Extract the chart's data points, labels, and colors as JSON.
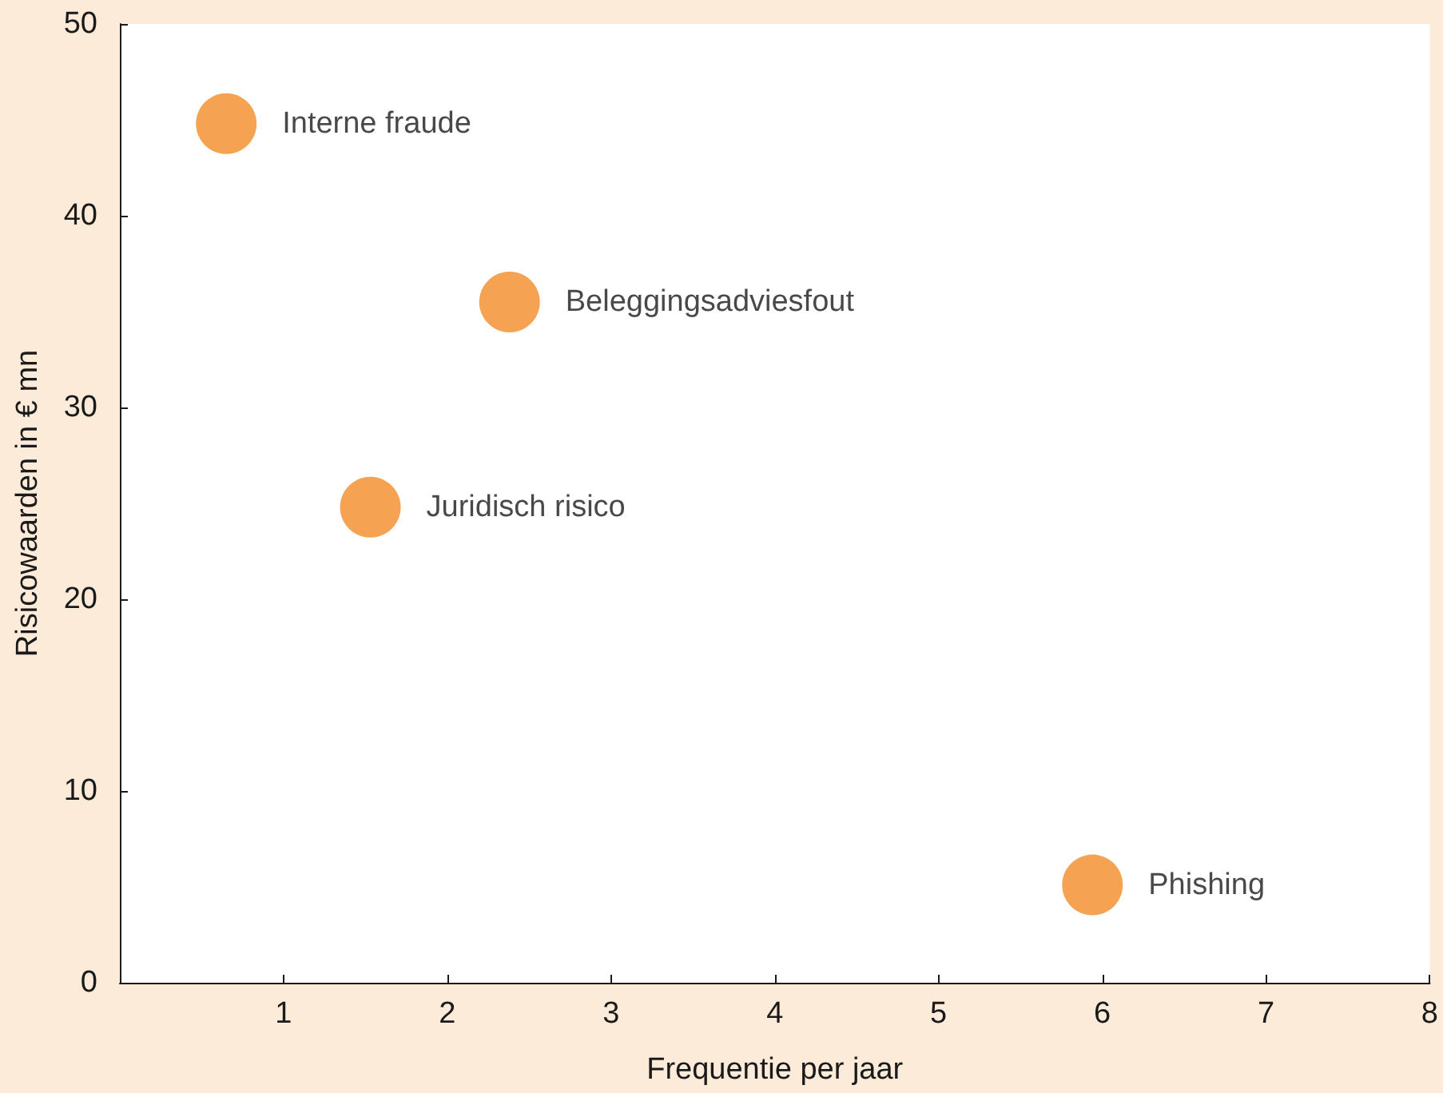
{
  "chart_data": {
    "type": "scatter",
    "xlabel": "Frequentie per jaar",
    "ylabel": "Risicowaarden in € mn",
    "series": [
      {
        "name": "Interne fraude",
        "color": "#f28c28",
        "x": [
          0.65
        ],
        "values": [
          44.8
        ]
      },
      {
        "name": "Beleggingsadviesfout",
        "color": "#f28c28",
        "x": [
          2.38
        ],
        "values": [
          35.5
        ]
      },
      {
        "name": "Juridisch risico",
        "color": "#f28c28",
        "x": [
          1.53
        ],
        "values": [
          24.8
        ]
      },
      {
        "name": "Phishing",
        "color": "#f28c28",
        "x": [
          5.94
        ],
        "values": [
          5.1
        ]
      }
    ],
    "xlim": [
      0,
      8
    ],
    "xticks": [
      1,
      2,
      3,
      4,
      5,
      6,
      7,
      8
    ],
    "ylim": [
      0,
      50
    ],
    "yticks": [
      0,
      10,
      20,
      30,
      40,
      50
    ],
    "grid": false,
    "legend": false,
    "marker": "circle"
  }
}
